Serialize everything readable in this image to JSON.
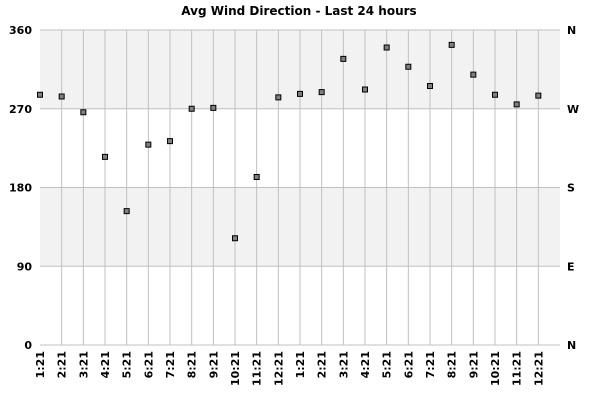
{
  "chart_data": {
    "type": "scatter",
    "title": "Avg Wind Direction - Last 24 hours",
    "xlabel": "",
    "ylabel": "",
    "ylim": [
      0,
      360
    ],
    "y_ticks": [
      0,
      90,
      180,
      270,
      360
    ],
    "y_ticks_right": [
      "N",
      "E",
      "S",
      "W",
      "N"
    ],
    "band_fill": "#f2f2f2",
    "grid_color": "#c0c0c0",
    "marker_fill": "#808080",
    "marker_stroke": "#000000",
    "grid": true,
    "categories": [
      "1:21",
      "2:21",
      "3:21",
      "4:21",
      "5:21",
      "6:21",
      "7:21",
      "8:21",
      "9:21",
      "10:21",
      "11:21",
      "12:21",
      "1:21",
      "2:21",
      "3:21",
      "4:21",
      "5:21",
      "6:21",
      "7:21",
      "8:21",
      "9:21",
      "10:21",
      "11:21",
      "12:21"
    ],
    "values": [
      286,
      284,
      266,
      215,
      153,
      229,
      233,
      270,
      271,
      122,
      192,
      283,
      287,
      289,
      327,
      292,
      340,
      318,
      296,
      343,
      309,
      286,
      275,
      285
    ]
  }
}
